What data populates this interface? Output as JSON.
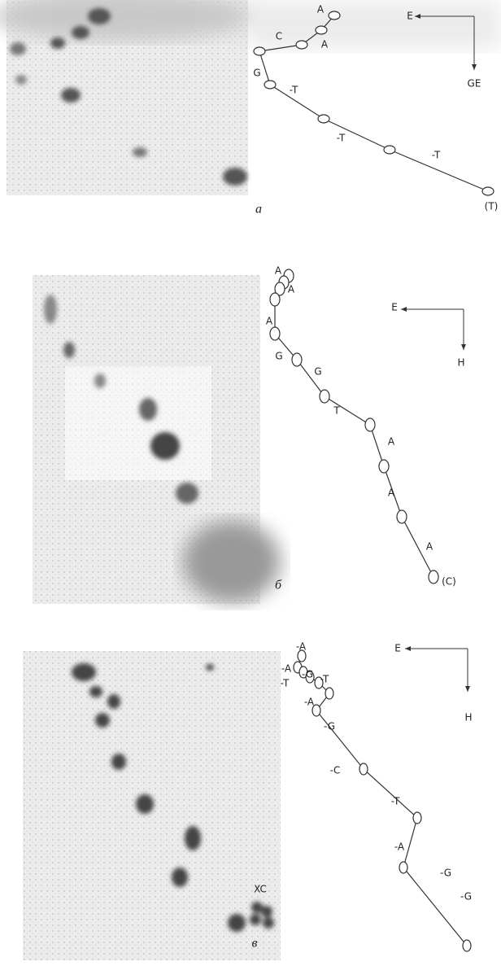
{
  "panels": [
    {
      "letter": "a",
      "axis_h": "E",
      "axis_v": "GE",
      "labels": [
        "A",
        "A",
        "C",
        "G",
        "-T",
        "-T",
        "-T",
        "(T)"
      ]
    },
    {
      "letter": "б",
      "axis_h": "E",
      "axis_v": "H",
      "labels": [
        "A",
        "A",
        "A",
        "G",
        "G",
        "T",
        "A",
        "A",
        "A",
        "(C)"
      ]
    },
    {
      "letter": "в",
      "axis_h": "E",
      "axis_v": "H",
      "spot_label": "XC",
      "labels": [
        "-A",
        "-A",
        "-G",
        "-T",
        "-T",
        "-A",
        "-G",
        "-C",
        "-T",
        "-A",
        "-G",
        "-G"
      ]
    }
  ]
}
